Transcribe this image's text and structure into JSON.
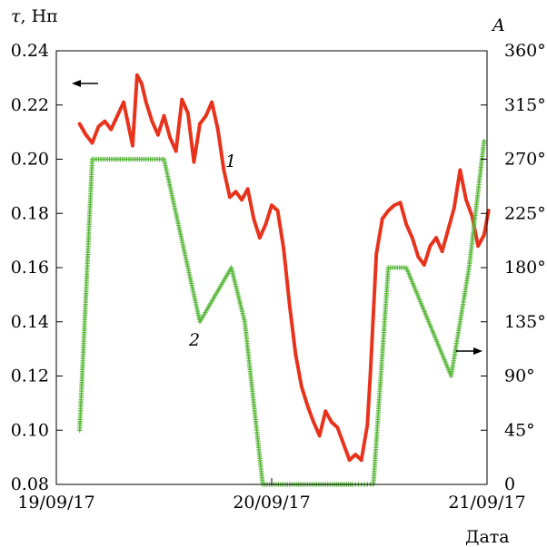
{
  "chart_data": {
    "type": "scatter",
    "left_axis": {
      "label_symbol": "τ",
      "label_unit": ", Нп",
      "ylim": [
        0.08,
        0.24
      ],
      "ticks": [
        "0.08",
        "0.10",
        "0.12",
        "0.14",
        "0.16",
        "0.18",
        "0.20",
        "0.22",
        "0.24"
      ]
    },
    "right_axis": {
      "label": "A",
      "ylim": [
        0,
        360
      ],
      "ticks": [
        "0",
        "45°",
        "90°",
        "135°",
        "180°",
        "225°",
        "270°",
        "315°",
        "360°"
      ]
    },
    "x_axis": {
      "label": "Дата",
      "xlim": [
        "19/09/17 00:00",
        "21/09/17 00:00"
      ],
      "ticks": [
        "19/09/17",
        "20/09/17",
        "21/09/17"
      ]
    },
    "series": [
      {
        "name": "1",
        "axis": "left",
        "color": "#e8321c",
        "marker": "dot",
        "x": [
          "19/09/17 02:36",
          "19/09/17 03:18",
          "19/09/17 04:00",
          "19/09/17 04:42",
          "19/09/17 05:24",
          "19/09/17 06:06",
          "19/09/17 06:48",
          "19/09/17 07:30",
          "19/09/17 08:30",
          "19/09/17 09:00",
          "19/09/17 09:30",
          "19/09/17 10:00",
          "19/09/17 10:40",
          "19/09/17 11:20",
          "19/09/17 12:00",
          "19/09/17 12:40",
          "19/09/17 13:20",
          "19/09/17 14:00",
          "19/09/17 14:40",
          "19/09/17 15:20",
          "19/09/17 16:00",
          "19/09/17 16:40",
          "19/09/17 17:20",
          "19/09/17 18:00",
          "19/09/17 18:40",
          "19/09/17 19:20",
          "19/09/17 20:00",
          "19/09/17 20:40",
          "19/09/17 21:20",
          "19/09/17 22:00",
          "19/09/17 22:40",
          "19/09/17 23:20",
          "20/09/17 00:00",
          "20/09/17 00:40",
          "20/09/17 01:20",
          "20/09/17 02:00",
          "20/09/17 02:40",
          "20/09/17 03:20",
          "20/09/17 04:00",
          "20/09/17 04:40",
          "20/09/17 05:20",
          "20/09/17 06:00",
          "20/09/17 06:40",
          "20/09/17 07:20",
          "20/09/17 08:00",
          "20/09/17 08:40",
          "20/09/17 09:20",
          "20/09/17 10:00",
          "20/09/17 10:40",
          "20/09/17 11:00",
          "20/09/17 11:40",
          "20/09/17 12:20",
          "20/09/17 13:00",
          "20/09/17 13:40",
          "20/09/17 14:20",
          "20/09/17 15:00",
          "20/09/17 15:40",
          "20/09/17 16:20",
          "20/09/17 17:00",
          "20/09/17 17:40",
          "20/09/17 18:20",
          "20/09/17 19:00",
          "20/09/17 19:40",
          "20/09/17 20:20",
          "20/09/17 21:00",
          "20/09/17 21:40",
          "20/09/17 22:20",
          "20/09/17 23:00",
          "20/09/17 23:40",
          "21/09/17 00:10"
        ],
        "y": [
          0.213,
          0.209,
          0.206,
          0.212,
          0.214,
          0.211,
          0.216,
          0.221,
          0.205,
          0.231,
          0.228,
          0.221,
          0.214,
          0.209,
          0.216,
          0.208,
          0.203,
          0.222,
          0.217,
          0.199,
          0.213,
          0.216,
          0.221,
          0.211,
          0.196,
          0.186,
          0.188,
          0.185,
          0.189,
          0.178,
          0.171,
          0.176,
          0.183,
          0.181,
          0.167,
          0.146,
          0.128,
          0.116,
          0.109,
          0.103,
          0.098,
          0.107,
          0.103,
          0.101,
          0.095,
          0.089,
          0.091,
          0.089,
          0.102,
          0.121,
          0.165,
          0.178,
          0.181,
          0.183,
          0.184,
          0.176,
          0.171,
          0.164,
          0.161,
          0.168,
          0.171,
          0.166,
          0.174,
          0.182,
          0.196,
          0.185,
          0.179,
          0.168,
          0.172,
          0.181
        ]
      },
      {
        "name": "2",
        "axis": "right",
        "color": "#5ab83c",
        "marker": "plus",
        "x": [
          "19/09/17 02:36",
          "19/09/17 04:00",
          "19/09/17 10:00",
          "19/09/17 12:00",
          "19/09/17 16:00",
          "19/09/17 19:30",
          "19/09/17 21:00",
          "19/09/17 23:00",
          "19/09/17 23:30",
          "20/09/17 03:30",
          "20/09/17 05:00",
          "20/09/17 07:00",
          "20/09/17 07:40",
          "20/09/17 08:20",
          "20/09/17 09:00",
          "20/09/17 09:20",
          "20/09/17 09:40",
          "20/09/17 10:00",
          "20/09/17 10:20",
          "20/09/17 10:40",
          "20/09/17 11:00",
          "20/09/17 11:20",
          "20/09/17 13:00",
          "20/09/17 15:00",
          "20/09/17 20:00",
          "20/09/17 22:00",
          "20/09/17 23:40"
        ],
        "y": [
          45,
          270,
          270,
          270,
          135,
          180,
          135,
          0,
          0,
          0,
          0,
          0,
          0,
          0,
          0,
          0,
          0,
          0,
          0,
          0,
          0,
          0,
          180,
          180,
          90,
          180,
          285
        ]
      }
    ],
    "annotations": [
      {
        "text": "1",
        "series": "1"
      },
      {
        "text": "2",
        "series": "2"
      },
      {
        "arrow": "left",
        "series": "1"
      },
      {
        "arrow": "right",
        "series": "2"
      }
    ]
  }
}
